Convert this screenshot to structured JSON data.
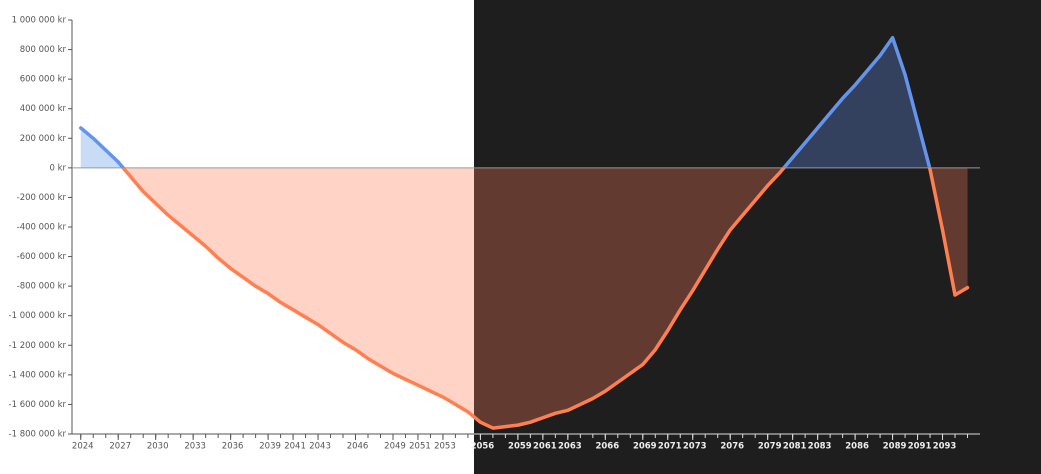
{
  "chart_data": {
    "type": "area",
    "x": [
      2024,
      2025,
      2026,
      2027,
      2028,
      2029,
      2030,
      2031,
      2032,
      2033,
      2034,
      2035,
      2036,
      2037,
      2038,
      2039,
      2040,
      2041,
      2042,
      2043,
      2044,
      2045,
      2046,
      2047,
      2048,
      2049,
      2050,
      2051,
      2052,
      2053,
      2054,
      2055,
      2056,
      2057,
      2058,
      2059,
      2060,
      2061,
      2062,
      2063,
      2064,
      2065,
      2066,
      2067,
      2068,
      2069,
      2070,
      2071,
      2072,
      2073,
      2074,
      2075,
      2076,
      2077,
      2078,
      2079,
      2080,
      2081,
      2082,
      2083,
      2084,
      2085,
      2086,
      2087,
      2088,
      2089,
      2090,
      2091,
      2092,
      2093,
      2094,
      2095
    ],
    "values": [
      270000,
      200000,
      120000,
      40000,
      -60000,
      -160000,
      -240000,
      -320000,
      -390000,
      -460000,
      -530000,
      -610000,
      -680000,
      -740000,
      -800000,
      -850000,
      -910000,
      -960000,
      -1010000,
      -1060000,
      -1120000,
      -1180000,
      -1230000,
      -1290000,
      -1340000,
      -1390000,
      -1430000,
      -1470000,
      -1510000,
      -1550000,
      -1600000,
      -1650000,
      -1720000,
      -1760000,
      -1750000,
      -1740000,
      -1720000,
      -1690000,
      -1660000,
      -1640000,
      -1600000,
      -1560000,
      -1510000,
      -1450000,
      -1390000,
      -1330000,
      -1230000,
      -1100000,
      -960000,
      -830000,
      -690000,
      -550000,
      -420000,
      -320000,
      -220000,
      -120000,
      -30000,
      70000,
      170000,
      270000,
      370000,
      470000,
      560000,
      660000,
      760000,
      880000,
      630000,
      310000,
      -10000,
      -420000,
      -860000,
      -810000
    ],
    "positive_color": "#6495ed",
    "negative_color": "#ff7f50",
    "positive_fill": "#c8dcf6",
    "negative_fill": "#ffd4c6",
    "positive_fill_dark": "#33415e",
    "negative_fill_dark": "#633a2f",
    "xlim": [
      2023.3,
      2096
    ],
    "xticks": [
      2024,
      2027,
      2030,
      2033,
      2036,
      2039,
      2041,
      2043,
      2046,
      2049,
      2051,
      2053,
      2056,
      2059,
      2061,
      2063,
      2066,
      2069,
      2071,
      2073,
      2076,
      2079,
      2081,
      2083,
      2086,
      2089,
      2091,
      2093
    ],
    "ylim": [
      -1800000,
      1000000
    ],
    "yticks": [
      {
        "value": -1800000,
        "label": "-1 800 000 kr"
      },
      {
        "value": -1600000,
        "label": "-1 600 000 kr"
      },
      {
        "value": -1400000,
        "label": "-1 400 000 kr"
      },
      {
        "value": -1200000,
        "label": "-1 200 000 kr"
      },
      {
        "value": -1000000,
        "label": "-1 000 000 kr"
      },
      {
        "value": -800000,
        "label": "-800 000 kr"
      },
      {
        "value": -600000,
        "label": "-600 000 kr"
      },
      {
        "value": -400000,
        "label": "-400 000 kr"
      },
      {
        "value": -200000,
        "label": "-200 000 kr"
      },
      {
        "value": 0,
        "label": "0 kr"
      },
      {
        "value": 200000,
        "label": "200 000 kr"
      },
      {
        "value": 400000,
        "label": "400 000 kr"
      },
      {
        "value": 600000,
        "label": "600 000 kr"
      },
      {
        "value": 800000,
        "label": "800 000 kr"
      },
      {
        "value": 1000000,
        "label": "1 000 000 kr"
      }
    ]
  }
}
